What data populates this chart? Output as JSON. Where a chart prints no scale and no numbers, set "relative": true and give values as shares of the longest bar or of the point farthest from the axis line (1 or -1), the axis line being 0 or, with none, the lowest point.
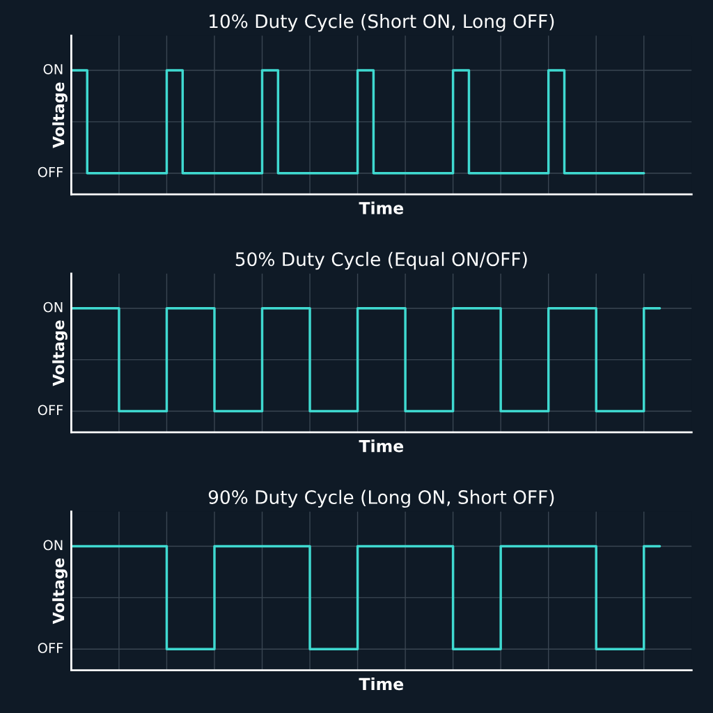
{
  "chart_data": [
    {
      "type": "step",
      "title": "10% Duty Cycle (Short ON, Long OFF)",
      "xlabel": "Time",
      "ylabel": "Voltage",
      "relative": true,
      "categories": [
        null,
        null,
        null,
        null,
        null,
        null,
        null,
        null,
        null,
        null,
        null,
        null,
        null,
        null,
        null,
        null,
        null,
        null,
        null,
        null,
        null,
        null,
        null,
        null,
        null,
        null,
        null,
        null,
        null,
        null,
        null,
        null,
        null,
        null,
        null,
        null,
        null
      ],
      "annotations": [
        "ON",
        "OFF"
      ],
      "grid": true,
      "line_style": "solid",
      "series": [
        {
          "color": "#3fd9d0",
          "values": [
            1,
            0.17,
            0.17,
            0.17,
            0.17,
            0.17,
            1,
            0.17,
            0.17,
            0.17,
            0.17,
            0.17,
            1,
            0.17,
            0.17,
            0.17,
            0.17,
            0.17,
            1,
            0.17,
            0.17,
            0.17,
            0.17,
            0.17,
            1,
            0.17,
            0.17,
            0.17,
            0.17,
            0.17,
            1,
            0.17,
            0.17,
            0.17,
            0.17,
            0.17,
            0.17
          ]
        }
      ]
    },
    {
      "type": "step",
      "title": "50% Duty Cycle (Equal ON/OFF)",
      "xlabel": "Time",
      "ylabel": "Voltage",
      "relative": true,
      "categories": [
        null,
        null,
        null,
        null,
        null,
        null,
        null,
        null,
        null,
        null,
        null,
        null,
        null,
        null,
        null,
        null,
        null,
        null,
        null,
        null,
        null,
        null,
        null,
        null,
        null,
        null,
        null,
        null,
        null,
        null,
        null,
        null,
        null,
        null,
        null,
        null,
        null,
        null
      ],
      "annotations": [
        "ON",
        "OFF"
      ],
      "grid": true,
      "line_style": "solid",
      "series": [
        {
          "color": "#3fd9d0",
          "values": [
            1,
            1,
            1,
            0.17,
            0.17,
            0.17,
            1,
            1,
            1,
            0.17,
            0.17,
            0.17,
            1,
            1,
            1,
            0.17,
            0.17,
            0.17,
            1,
            1,
            1,
            0.17,
            0.17,
            0.17,
            1,
            1,
            1,
            0.17,
            0.17,
            0.17,
            1,
            1,
            1,
            0.17,
            0.17,
            0.17,
            1,
            1
          ]
        }
      ]
    },
    {
      "type": "step",
      "title": "90% Duty Cycle (Long ON, Short OFF)",
      "xlabel": "Time",
      "ylabel": "Voltage",
      "relative": true,
      "categories": [
        null,
        null,
        null,
        null,
        null,
        null,
        null,
        null,
        null,
        null,
        null,
        null,
        null,
        null,
        null,
        null,
        null,
        null,
        null,
        null,
        null,
        null,
        null,
        null,
        null,
        null,
        null,
        null,
        null,
        null,
        null,
        null,
        null,
        null,
        null,
        null,
        null,
        null
      ],
      "annotations": [
        "ON",
        "OFF"
      ],
      "grid": true,
      "line_style": "solid",
      "series": [
        {
          "color": "#3fd9d0",
          "values": [
            1,
            1,
            1,
            1,
            1,
            1,
            0.17,
            0.17,
            0.17,
            1,
            1,
            1,
            1,
            1,
            1,
            0.17,
            0.17,
            0.17,
            1,
            1,
            1,
            1,
            1,
            1,
            0.17,
            0.17,
            0.17,
            1,
            1,
            1,
            1,
            1,
            1,
            0.17,
            0.17,
            0.17,
            1,
            1
          ]
        }
      ]
    }
  ]
}
